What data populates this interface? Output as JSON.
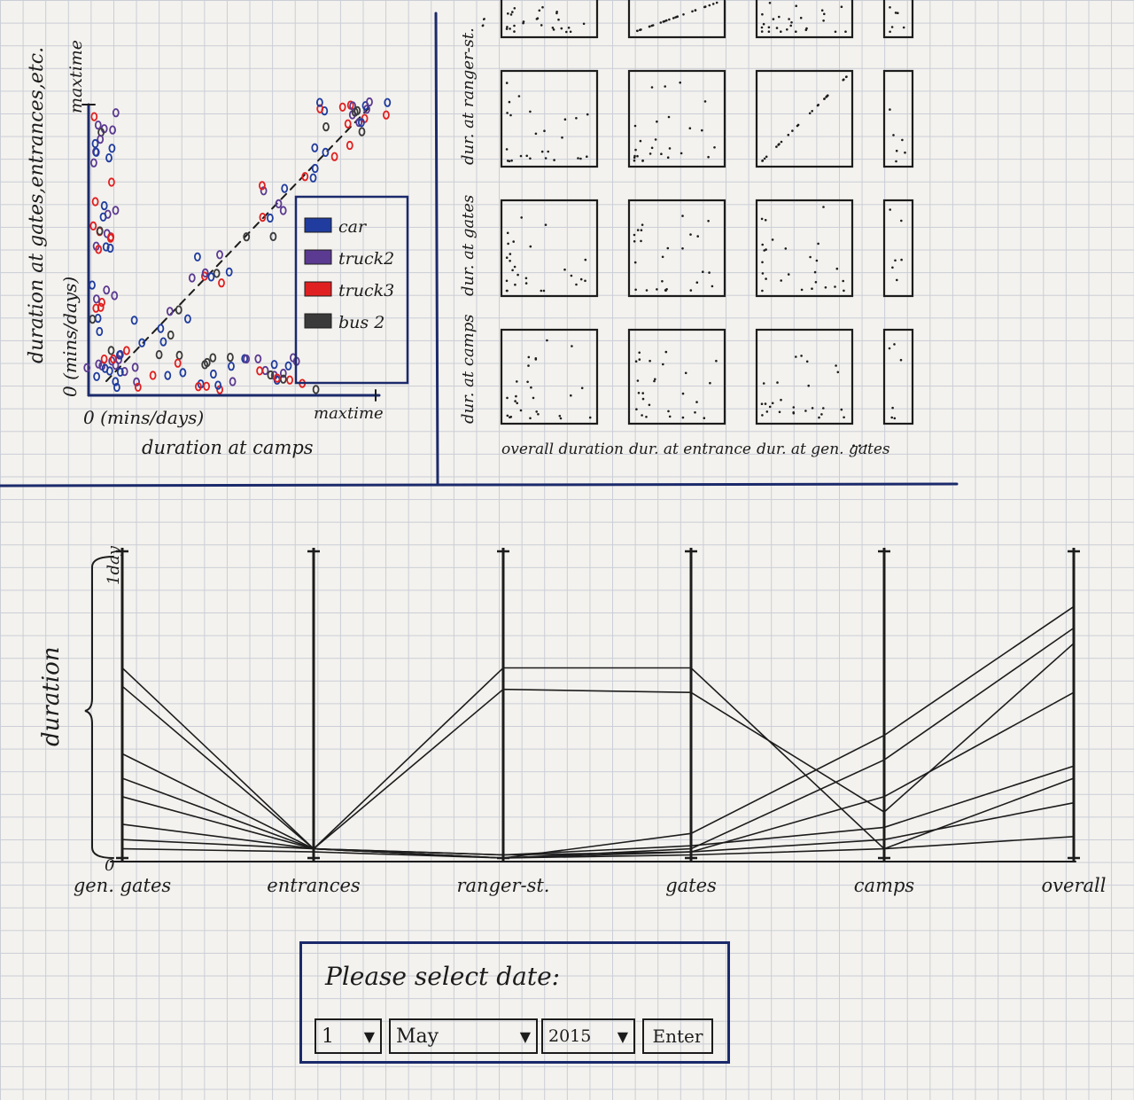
{
  "scatter": {
    "y_label": "duration at gates,entrances,etc.",
    "y_label_units": "0 (mins/days)",
    "y_max_label": "maxtime",
    "x_origin_label": "0 (mins/days)",
    "x_max_label": "maxtime",
    "x_label": "duration at camps",
    "legend": [
      {
        "label": "car",
        "color": "#1f3c9e"
      },
      {
        "label": "truck2",
        "color": "#5b3a91"
      },
      {
        "label": "truck3",
        "color": "#e02020"
      },
      {
        "label": "bus 2",
        "color": "#3a3a3a"
      }
    ]
  },
  "matrix": {
    "row_labels": [
      "dur. at ranger-st.",
      "dur. at gates",
      "dur. at camps"
    ],
    "col_labels": [
      "overall duration",
      "dur. at entrance",
      "dur. at gen. gates"
    ],
    "ellipsis": "...",
    "top_ellipsis": ":"
  },
  "parallel": {
    "y_label": "duration",
    "y_top_label": "1day",
    "y_zero_label": "0"
  },
  "date_form": {
    "prompt": "Please select date:",
    "day": "1",
    "month": "May",
    "year": "2015",
    "enter_label": "Enter"
  },
  "chart_data": [
    {
      "type": "scatter",
      "xlabel": "duration at camps",
      "ylabel": "duration at gates,entrances,etc.",
      "series": [
        {
          "name": "car",
          "color": "#1f3c9e"
        },
        {
          "name": "truck2",
          "color": "#5b3a91"
        },
        {
          "name": "truck3",
          "color": "#e02020"
        },
        {
          "name": "bus 2",
          "color": "#3a3a3a"
        }
      ]
    },
    {
      "type": "line",
      "categories": [
        "gen. gates",
        "entrances",
        "ranger-st.",
        "gates",
        "camps",
        "overall"
      ],
      "ylabel": "duration",
      "series": [
        {
          "values": [
            0.62,
            0.03,
            0.62,
            0.62,
            0.03,
            0.26
          ]
        },
        {
          "values": [
            0.56,
            0.03,
            0.55,
            0.54,
            0.15,
            0.7
          ]
        },
        {
          "values": [
            0.34,
            0.03,
            0.0,
            0.08,
            0.4,
            0.82
          ]
        },
        {
          "values": [
            0.26,
            0.03,
            0.0,
            0.03,
            0.32,
            0.75
          ]
        },
        {
          "values": [
            0.2,
            0.03,
            0.01,
            0.02,
            0.2,
            0.54
          ]
        },
        {
          "values": [
            0.11,
            0.03,
            0.01,
            0.04,
            0.1,
            0.3
          ]
        },
        {
          "values": [
            0.06,
            0.03,
            0.0,
            0.02,
            0.06,
            0.18
          ]
        },
        {
          "values": [
            0.03,
            0.02,
            0.0,
            0.01,
            0.03,
            0.07
          ]
        }
      ]
    }
  ]
}
